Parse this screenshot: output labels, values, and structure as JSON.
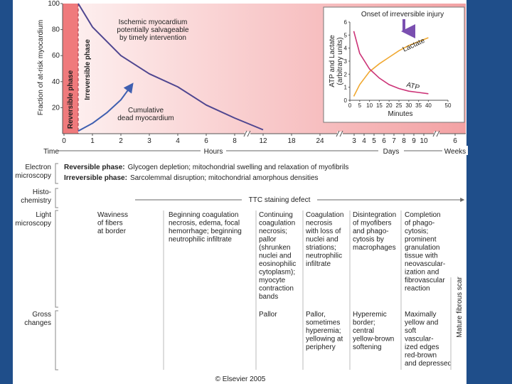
{
  "chart_data": [
    {
      "type": "line",
      "ylabel": "Fraction of at-risk myocardium",
      "ylim": [
        0,
        100
      ],
      "yticks": [
        20,
        40,
        60,
        80,
        100
      ],
      "xlabel": "Time",
      "xgroups": [
        {
          "unit": "Hours",
          "ticks": [
            0,
            1,
            2,
            3,
            4,
            6,
            8,
            12,
            18,
            24
          ]
        },
        {
          "unit": "Days",
          "ticks": [
            3,
            4,
            5,
            6,
            7,
            8,
            9,
            10
          ]
        },
        {
          "unit": "Weeks",
          "ticks": [
            6
          ]
        }
      ],
      "phase_boundary_hours": 0.5,
      "phases": [
        "Reversible phase",
        "Irreversible phase"
      ],
      "series": [
        {
          "color": "#4f4690",
          "x": [
            0.5,
            1,
            2,
            3,
            4,
            6,
            8,
            12
          ],
          "values": [
            100,
            82,
            60,
            46,
            36,
            22,
            12,
            3
          ]
        },
        {
          "color": "#3f5fb0",
          "x": [
            0.5,
            1,
            1.5,
            2,
            2.4
          ],
          "values": [
            2,
            8,
            16,
            26,
            38
          ]
        }
      ],
      "annotations": [
        {
          "lines": [
            "Ischemic myocardium",
            "potentially salvageable",
            "by timely intervention"
          ]
        },
        {
          "lines": [
            "Cumulative",
            "dead myocardium"
          ]
        }
      ]
    },
    {
      "type": "line",
      "title": "Onset of irreversible injury",
      "ylabel": [
        "ATP and Lactate",
        "(arbitrary units)"
      ],
      "xlabel": "Minutes",
      "xlim": [
        0,
        50
      ],
      "xticks": [
        0,
        5,
        10,
        15,
        20,
        25,
        30,
        35,
        40,
        50
      ],
      "ylim": [
        0,
        6
      ],
      "yticks": [
        0,
        1,
        2,
        3,
        4,
        5,
        6
      ],
      "series": [
        {
          "name": "Lactate",
          "color": "#f0a830",
          "x": [
            2,
            5,
            10,
            15,
            20,
            25,
            30,
            35,
            40
          ],
          "values": [
            0.3,
            1.2,
            2.2,
            2.8,
            3.3,
            3.8,
            4.2,
            4.5,
            4.8
          ]
        },
        {
          "name": "ATP",
          "color": "#cc3377",
          "x": [
            2,
            5,
            10,
            15,
            20,
            25,
            30,
            35,
            40
          ],
          "values": [
            5.3,
            3.6,
            2.4,
            1.7,
            1.2,
            0.9,
            0.7,
            0.6,
            0.5
          ]
        }
      ]
    }
  ],
  "table": {
    "rows": [
      {
        "label": [
          "Electron",
          "microscopy"
        ],
        "entries": [
          {
            "phase": "Reversible phase:",
            "text": "Glycogen depletion; mitochondrial swelling and relaxation of myofibrils"
          },
          {
            "phase": "Irreversible phase:",
            "text": "Sarcolemmal disruption; mitochondrial amorphous densities"
          }
        ]
      },
      {
        "label": [
          "Histo-",
          "chemistry"
        ],
        "span": "TTC staining defect"
      },
      {
        "label": [
          "Light",
          "microscopy"
        ],
        "cells": [
          [
            "Waviness",
            "of fibers",
            "at border"
          ],
          [
            "Beginning coagulation",
            "necrosis, edema, focal",
            "hemorrhage; beginning",
            "neutrophilic infiltrate"
          ],
          [
            "Continuing",
            "coagulation",
            "necrosis;",
            "pallor",
            "(shrunken",
            "nuclei and",
            "eosinophilic",
            "cytoplasm);",
            "myocyte",
            "contraction",
            "bands"
          ],
          [
            "Coagulation",
            "necrosis",
            "with loss of",
            "nuclei and",
            "striations;",
            "neutrophilic",
            "infiltrate"
          ],
          [
            "Disintegration",
            "of myofibers",
            "and phago-",
            "cytosis by",
            "macrophages"
          ],
          [
            "Completion",
            "of phago-",
            "cytosis;",
            "prominent",
            "granulation",
            "tissue with",
            "neovascular-",
            "ization and",
            "fibrovascular",
            "reaction"
          ]
        ]
      },
      {
        "label": [
          "Gross",
          "changes"
        ],
        "cells": [
          [
            "Pallor"
          ],
          [
            "Pallor,",
            "sometimes",
            "hyperemia;",
            "yellowing at",
            "periphery"
          ],
          [
            "Hyperemic",
            "border;",
            "central",
            "yellow-brown",
            "softening"
          ],
          [
            "Maximally",
            "yellow and",
            "soft",
            "vascular-",
            "ized edges",
            "red-brown",
            "and depressed"
          ]
        ]
      }
    ],
    "side_note": "Mature fibrous scar"
  },
  "footer": "© Elsevier 2005"
}
